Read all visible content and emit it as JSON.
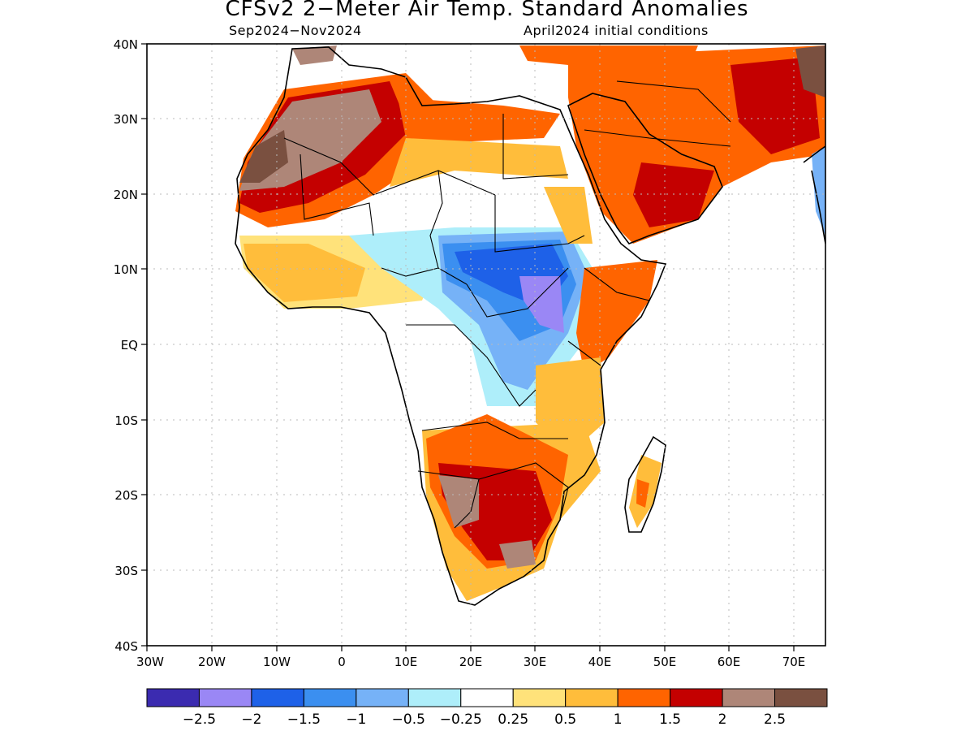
{
  "title": "CFSv2 2−Meter Air Temp. Standard Anomalies",
  "period": "Sep2024−Nov2024",
  "init": "April2024 initial conditions",
  "lat_ticks": [
    "40N",
    "30N",
    "20N",
    "10N",
    "EQ",
    "10S",
    "20S",
    "30S",
    "40S"
  ],
  "lon_ticks": [
    "30W",
    "20W",
    "10W",
    "0",
    "10E",
    "20E",
    "30E",
    "40E",
    "50E",
    "60E",
    "70E"
  ],
  "legend": {
    "colors": [
      "#3b2bb0",
      "#9a87f5",
      "#1e61e8",
      "#3b8ff0",
      "#76b2f7",
      "#aeeefa",
      "#ffffff",
      "#ffe27a",
      "#ffbd3b",
      "#ff6400",
      "#c40000",
      "#ae8678",
      "#7a5040"
    ],
    "labels": [
      "−2.5",
      "−2",
      "−1.5",
      "−1",
      "−0.5",
      "−0.25",
      "0.25",
      "0.5",
      "1",
      "1.5",
      "2",
      "2.5"
    ]
  }
}
